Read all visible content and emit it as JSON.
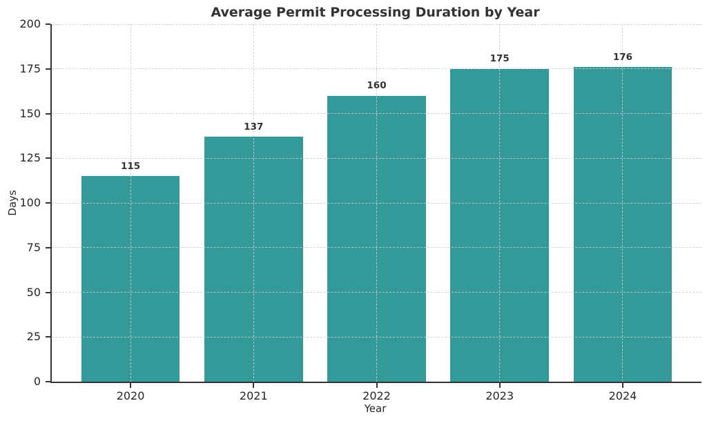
{
  "chart_data": {
    "type": "bar",
    "title": "Average Permit Processing Duration by Year",
    "xlabel": "Year",
    "ylabel": "Days",
    "categories": [
      "2020",
      "2021",
      "2022",
      "2023",
      "2024"
    ],
    "values": [
      115,
      137,
      160,
      175,
      176
    ],
    "value_labels": [
      "115",
      "137",
      "160",
      "175",
      "176"
    ],
    "ylim": [
      0,
      200
    ],
    "yticks": [
      0,
      25,
      50,
      75,
      100,
      125,
      150,
      175,
      200
    ],
    "grid": true,
    "grid_style": "dashed",
    "legend_position": "none",
    "bar_color": "#339999",
    "axis_color": "#333333",
    "text_color": "#262626",
    "title_color": "#333333",
    "grid_color": "#cccccc",
    "bar_width_fraction": 0.8
  }
}
